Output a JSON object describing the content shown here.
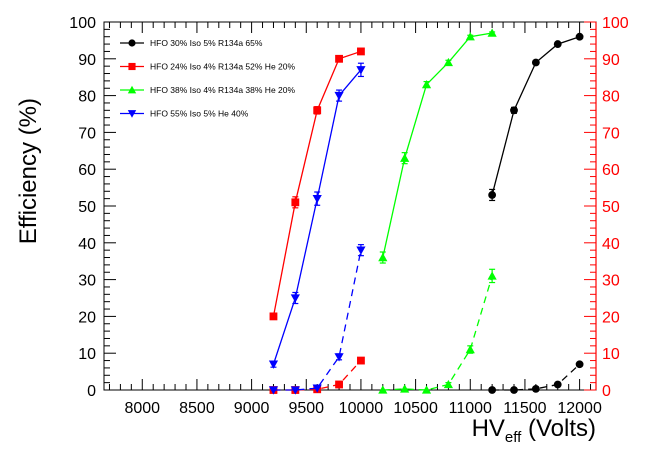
{
  "chart_data": {
    "type": "line",
    "title": "",
    "ylabel": "Efficiency (%)",
    "xlabel": {
      "main": "HV",
      "sub": "eff",
      "suffix": " (Volts)"
    },
    "xlim": [
      7650,
      12150
    ],
    "ylim": [
      0,
      100
    ],
    "x_ticks": [
      8000,
      8500,
      9000,
      9500,
      10000,
      10500,
      11000,
      11500,
      12000
    ],
    "y_ticks": [
      0,
      10,
      20,
      30,
      40,
      50,
      60,
      70,
      80,
      90,
      100
    ],
    "right_axis": {
      "ticks": [
        0,
        10,
        20,
        30,
        40,
        50,
        60,
        70,
        80,
        90,
        100
      ],
      "color": "#ff0000"
    },
    "series": [
      {
        "name": "HFO 30% Iso 5% R134a 65%",
        "color": "#000000",
        "marker": "circle",
        "efficiency": {
          "x": [
            11200,
            11400,
            11600,
            11800,
            12000
          ],
          "y": [
            53,
            76,
            89,
            94,
            96
          ],
          "err": [
            1.5,
            0.8,
            0.5,
            0.4,
            0.3
          ]
        },
        "streamer": {
          "x": [
            11200,
            11400,
            11600,
            11800,
            12000
          ],
          "y": [
            0,
            0,
            0.3,
            1.5,
            7
          ]
        }
      },
      {
        "name": "HFO 24% Iso 4% R134a 52%  He 20%",
        "color": "#ff0000",
        "marker": "square",
        "efficiency": {
          "x": [
            9200,
            9400,
            9600,
            9800,
            10000
          ],
          "y": [
            20,
            51,
            76,
            90,
            92
          ],
          "err": [
            0.8,
            1.5,
            1.0,
            0.5,
            0.5
          ]
        },
        "streamer": {
          "x": [
            9200,
            9400,
            9600,
            9800,
            10000
          ],
          "y": [
            0,
            0,
            0.2,
            1.5,
            8
          ]
        }
      },
      {
        "name": "HFO 38% Iso 4% R134a 38%  He 20%",
        "color": "#00ff00",
        "marker": "triangle-up",
        "efficiency": {
          "x": [
            10200,
            10400,
            10600,
            10800,
            11000,
            11200
          ],
          "y": [
            36,
            63,
            83,
            89,
            96,
            97
          ],
          "err": [
            1.5,
            1.5,
            0.8,
            0.6,
            0.4,
            0.3
          ]
        },
        "streamer": {
          "x": [
            10200,
            10400,
            10600,
            10800,
            11000,
            11200
          ],
          "y": [
            0,
            0.3,
            0,
            1.5,
            11,
            31
          ],
          "err": [
            0,
            0,
            0,
            0.5,
            1.0,
            1.8
          ]
        }
      },
      {
        "name": "HFO 55% Iso 5% He 40%",
        "color": "#0000ff",
        "marker": "triangle-down",
        "efficiency": {
          "x": [
            9200,
            9400,
            9600,
            9800,
            10000
          ],
          "y": [
            7,
            25,
            52,
            80,
            87
          ],
          "err": [
            0.8,
            1.5,
            1.8,
            1.5,
            1.8
          ]
        },
        "streamer": {
          "x": [
            9200,
            9400,
            9600,
            9800,
            10000
          ],
          "y": [
            0,
            0,
            0.5,
            9,
            38
          ],
          "err": [
            0,
            0,
            0,
            0.8,
            1.5
          ]
        }
      }
    ]
  }
}
